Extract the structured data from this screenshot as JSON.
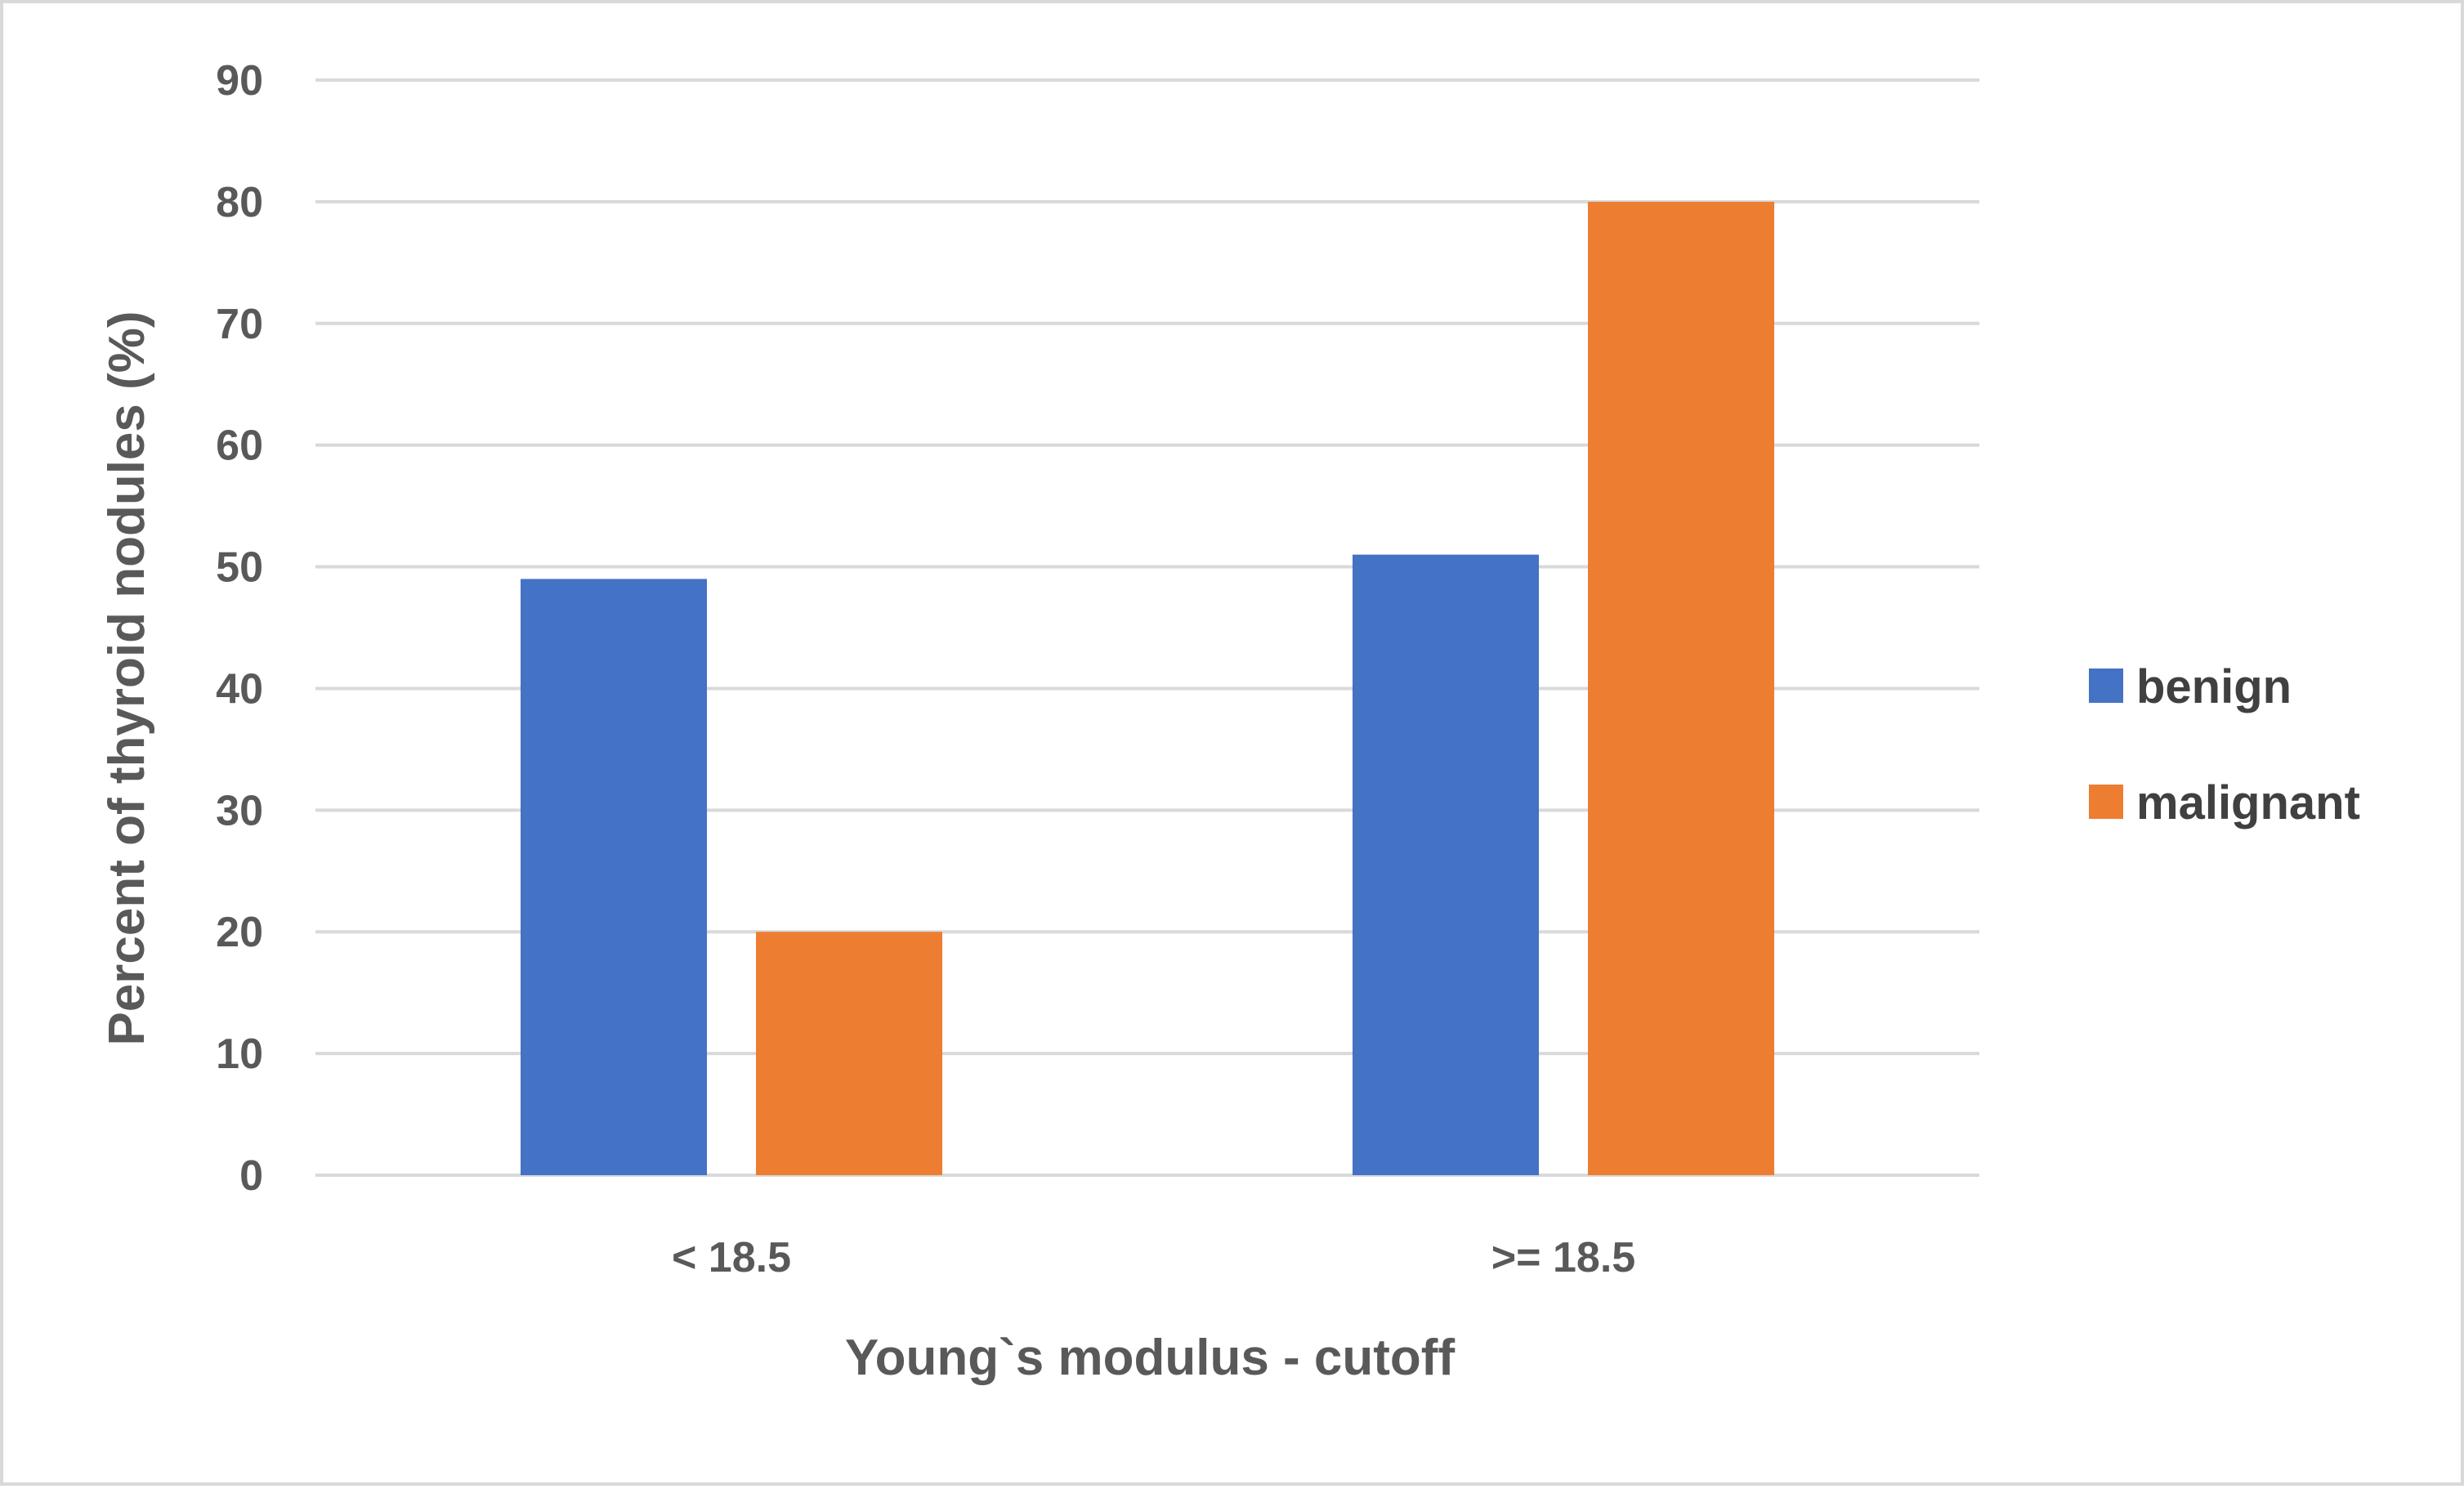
{
  "chart_data": {
    "type": "bar",
    "title": "",
    "categories": [
      "< 18.5",
      ">= 18.5"
    ],
    "series": [
      {
        "name": "benign",
        "values": [
          49,
          51
        ],
        "color": "#4472C4"
      },
      {
        "name": "malignant",
        "values": [
          20,
          80
        ],
        "color": "#ED7D31"
      }
    ],
    "xlabel": "Young`s modulus - cutoff",
    "ylabel": "Percent of thyroid nodules (%)",
    "ylim": [
      0,
      90
    ],
    "yticks": [
      0,
      10,
      20,
      30,
      40,
      50,
      60,
      70,
      80,
      90
    ],
    "grid": true,
    "gridline_color": "#d9d9d9",
    "legend_position": "right"
  }
}
